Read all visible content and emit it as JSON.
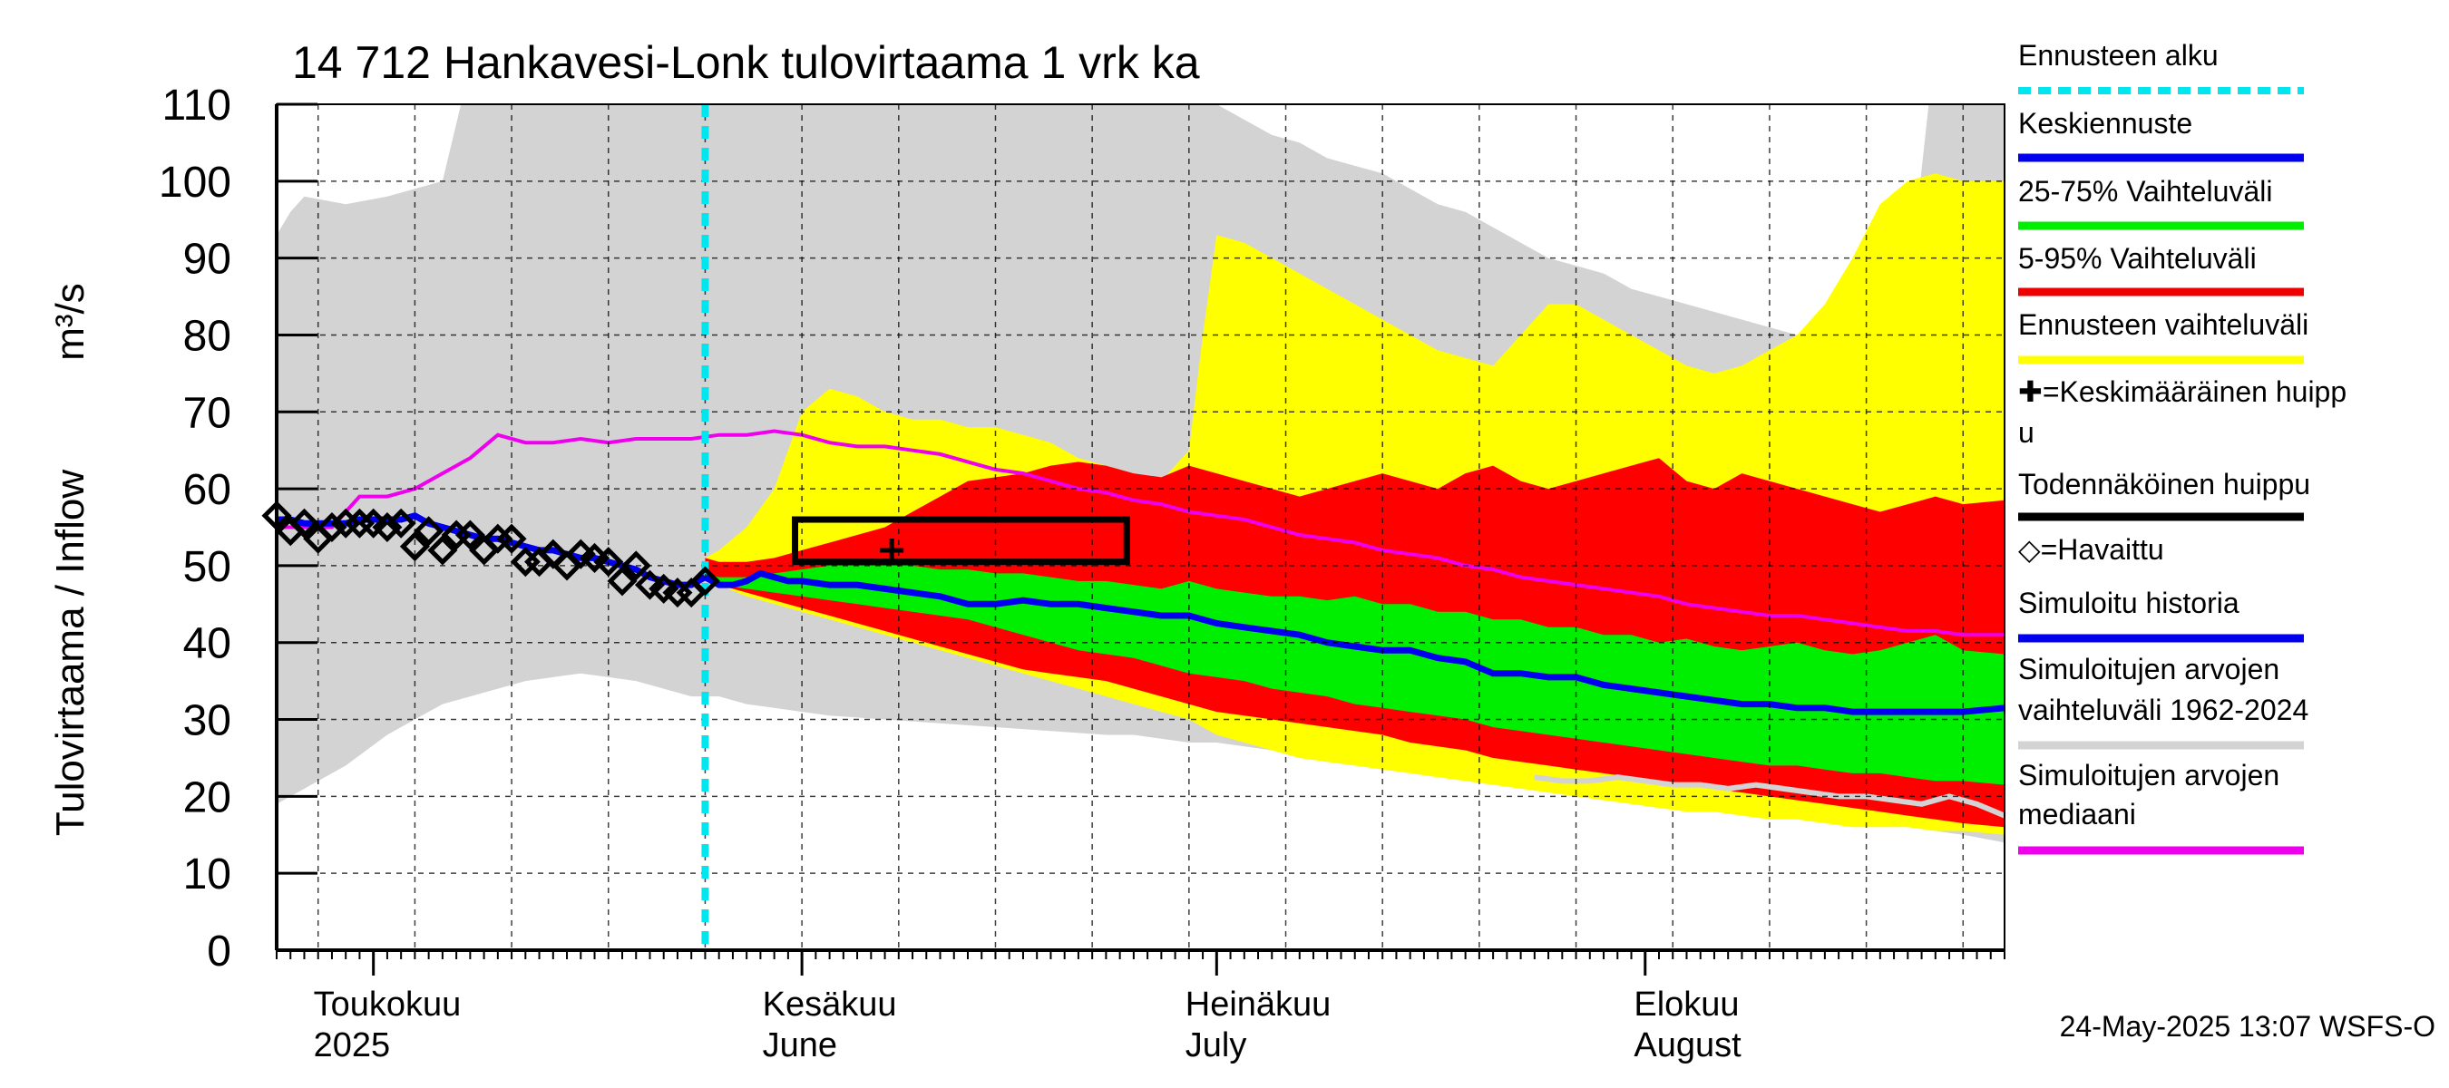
{
  "chart_data": {
    "type": "area",
    "title": "14 712 Hankavesi-Lonk tulovirtaama 1 vrk ka",
    "ylabel_main": "Tulovirtaama / Inflow",
    "ylabel_unit": "m³/s",
    "ylim": [
      0,
      110
    ],
    "yticks": [
      0,
      10,
      20,
      30,
      40,
      50,
      60,
      70,
      80,
      90,
      100,
      110
    ],
    "xlim": [
      0,
      125
    ],
    "grid": true,
    "legend_position": "right",
    "forecast_start_day": 31,
    "month_labels": [
      {
        "day": 8,
        "line1": "Toukokuu",
        "line2": "2025"
      },
      {
        "day": 40,
        "line1": "Kesäkuu",
        "line2": "June"
      },
      {
        "day": 71,
        "line1": "Heinäkuu",
        "line2": "July"
      },
      {
        "day": 102,
        "line1": "Elokuu",
        "line2": "August"
      }
    ],
    "month_starts": [
      7,
      38,
      68,
      99
    ],
    "week_lines": [
      3,
      10,
      17,
      24,
      31,
      38,
      45,
      52,
      59,
      66,
      73,
      80,
      87,
      94,
      101,
      108,
      115,
      122
    ],
    "timestamp": "24-May-2025 13:07 WSFS-O",
    "legend": [
      {
        "label": "Ennusteen alku",
        "color": "#00e5ee",
        "style": "dashed"
      },
      {
        "label": "Keskiennuste",
        "color": "#0000ee",
        "style": "line"
      },
      {
        "label": "25-75% Vaihteluväli",
        "color": "#00ee00",
        "style": "line"
      },
      {
        "label": "5-95% Vaihteluväli",
        "color": "#ee0000",
        "style": "line"
      },
      {
        "label": "Ennusteen vaihteluväli",
        "color": "#ffff00",
        "style": "line"
      },
      {
        "label": "✚=Keskimääräinen huipp",
        "label2": "u",
        "color": "#000000",
        "style": "none"
      },
      {
        "label": "Todennäköinen huippu",
        "color": "#000000",
        "style": "line"
      },
      {
        "label": "◇=Havaittu",
        "color": "#000000",
        "style": "none"
      },
      {
        "label": "Simuloitu historia",
        "color": "#0000ee",
        "style": "line"
      },
      {
        "label": "Simuloitujen arvojen",
        "label2": "vaihteluväli 1962-2024",
        "color": "#d3d3d3",
        "style": "line"
      },
      {
        "label": "Simuloitujen arvojen",
        "label2": "mediaani",
        "color": "#ee00ee",
        "style": "line"
      }
    ],
    "series": {
      "hist_range": {
        "x": [
          0,
          1,
          2,
          5,
          8,
          10,
          12,
          14,
          16,
          18,
          20,
          22,
          24,
          26,
          28,
          30,
          32,
          34,
          36,
          38,
          40,
          44,
          48,
          52,
          56,
          60,
          62,
          64,
          66,
          68,
          70,
          72,
          74,
          76,
          78,
          80,
          82,
          84,
          86,
          88,
          90,
          92,
          94,
          96,
          98,
          100,
          102,
          104,
          106,
          108,
          110,
          112,
          114,
          115,
          116,
          118,
          120,
          122,
          125
        ],
        "low": [
          19,
          20,
          21,
          24,
          28,
          30,
          32,
          33,
          34,
          35,
          35.5,
          36,
          35.5,
          35,
          34,
          33,
          33,
          32,
          31.5,
          31,
          30.5,
          30,
          29.5,
          29,
          28.5,
          28,
          28,
          27.5,
          27,
          27,
          26.5,
          26,
          25,
          24.5,
          24,
          24,
          23.5,
          23,
          23,
          22.5,
          22,
          22,
          21.5,
          21,
          21,
          20.5,
          20,
          19.5,
          19,
          19,
          18.5,
          18,
          17.5,
          17,
          16.5,
          16,
          15.5,
          15,
          14
        ],
        "high": [
          93,
          96,
          98,
          97,
          98,
          99,
          100,
          115,
          118,
          118,
          118,
          118,
          118,
          118,
          118,
          118,
          118,
          118,
          118,
          118,
          118,
          118,
          118,
          118,
          118,
          118,
          118,
          118,
          112,
          110,
          108,
          106,
          105,
          103,
          102,
          101,
          99,
          97,
          96,
          94,
          92,
          90,
          89,
          88,
          86,
          85,
          84,
          83,
          82,
          81,
          80,
          78,
          76,
          72,
          75,
          85,
          118,
          118,
          118
        ]
      },
      "ens_range": {
        "x": [
          31,
          32,
          34,
          36,
          38,
          40,
          42,
          44,
          46,
          48,
          50,
          52,
          54,
          56,
          58,
          60,
          62,
          64,
          66,
          67,
          68,
          70,
          72,
          74,
          76,
          78,
          80,
          82,
          84,
          86,
          88,
          90,
          92,
          94,
          96,
          98,
          100,
          102,
          104,
          106,
          108,
          110,
          112,
          114,
          116,
          118,
          120,
          122,
          125
        ],
        "low": [
          48,
          47.5,
          46,
          45,
          44,
          43,
          42,
          41,
          40,
          39,
          38,
          37,
          36,
          35,
          34,
          33,
          32,
          31,
          30,
          29,
          28,
          27,
          26,
          25,
          24.5,
          24,
          23.5,
          23,
          22.5,
          22,
          21.5,
          21,
          20.5,
          20,
          19.5,
          19,
          18.5,
          18,
          18,
          17.5,
          17,
          17,
          16.5,
          16,
          16,
          16,
          15.5,
          15.5,
          15
        ],
        "high": [
          51,
          52,
          55,
          60,
          70,
          73,
          72,
          70,
          69,
          69,
          68,
          68,
          67,
          66,
          64,
          63,
          62,
          61,
          65,
          80,
          93,
          92,
          90,
          88,
          86,
          84,
          82,
          80,
          78,
          77,
          76,
          80,
          84,
          84,
          82,
          80,
          78,
          76,
          75,
          76,
          78,
          80,
          84,
          90,
          97,
          100,
          101,
          100,
          100
        ]
      },
      "p5_95": {
        "x": [
          31,
          32,
          34,
          36,
          38,
          40,
          42,
          44,
          46,
          48,
          50,
          52,
          54,
          56,
          58,
          60,
          62,
          64,
          66,
          68,
          70,
          72,
          74,
          76,
          78,
          80,
          82,
          84,
          86,
          88,
          90,
          92,
          94,
          96,
          98,
          100,
          102,
          104,
          106,
          108,
          110,
          112,
          114,
          116,
          118,
          120,
          122,
          125
        ],
        "low": [
          48,
          47.5,
          46.5,
          45.5,
          44.5,
          43.5,
          42.5,
          41.5,
          40.5,
          39.5,
          38.5,
          37.5,
          36.5,
          36,
          35.5,
          35,
          34,
          33,
          32,
          31,
          30.5,
          30,
          29.5,
          29,
          28.5,
          28,
          27,
          26.5,
          26,
          25,
          24.5,
          24,
          23.5,
          23,
          22.5,
          22,
          21.5,
          21,
          20.5,
          20,
          19.5,
          19,
          18.5,
          18,
          17.5,
          17,
          16.5,
          16
        ],
        "high": [
          51,
          50.5,
          50.5,
          51,
          52,
          53,
          54,
          55,
          57,
          59,
          61,
          61.5,
          62,
          63,
          63.5,
          63,
          62,
          61.5,
          63,
          62,
          61,
          60,
          59,
          60,
          61,
          62,
          61,
          60,
          62,
          63,
          61,
          60,
          61,
          62,
          63,
          64,
          61,
          60,
          62,
          61,
          60,
          59,
          58,
          57,
          58,
          59,
          58,
          58.5
        ]
      },
      "p25_75": {
        "x": [
          31,
          32,
          34,
          36,
          38,
          40,
          42,
          44,
          46,
          48,
          50,
          52,
          54,
          56,
          58,
          60,
          62,
          64,
          66,
          68,
          70,
          72,
          74,
          76,
          78,
          80,
          82,
          84,
          86,
          88,
          90,
          92,
          94,
          96,
          98,
          100,
          102,
          104,
          106,
          108,
          110,
          112,
          114,
          116,
          118,
          120,
          122,
          125
        ],
        "low": [
          48,
          47.5,
          47,
          46.5,
          46,
          45.5,
          45,
          44.5,
          44,
          43.5,
          43,
          42,
          41,
          40,
          39,
          38.5,
          38,
          37,
          36,
          35.5,
          35,
          34,
          33.5,
          33,
          32,
          31.5,
          31,
          30.5,
          30,
          29,
          28.5,
          28,
          27.5,
          27,
          26.5,
          26,
          25.5,
          25,
          24.5,
          24,
          24,
          23.5,
          23,
          23,
          22.5,
          22,
          22,
          21.5
        ],
        "high": [
          49,
          48.5,
          48.5,
          49,
          49.5,
          50,
          50,
          50,
          50,
          49.5,
          49.5,
          49,
          49,
          48.5,
          48,
          48,
          47.5,
          47,
          48,
          47,
          46.5,
          46,
          46,
          45.5,
          46,
          45,
          45,
          44,
          44,
          43,
          43,
          42,
          42,
          41,
          41,
          40,
          40.5,
          39.5,
          39,
          39.5,
          40,
          39,
          38.5,
          39,
          40,
          41,
          39,
          38.5
        ]
      },
      "median_sim": {
        "x": [
          0,
          2,
          4,
          6,
          8,
          10,
          12,
          14,
          16,
          18,
          20,
          22,
          24,
          26,
          28,
          30,
          32,
          34,
          36,
          38,
          40,
          42,
          44,
          46,
          48,
          50,
          52,
          54,
          56,
          58,
          60,
          62,
          64,
          66,
          68,
          70,
          72,
          74,
          76,
          78,
          80,
          82,
          84,
          86,
          88,
          90,
          92,
          94,
          96,
          98,
          100,
          102,
          104,
          106,
          108,
          110,
          112,
          114,
          116,
          118,
          120,
          122,
          125
        ],
        "y": [
          55,
          55,
          55,
          59,
          59,
          60,
          62,
          64,
          67,
          66,
          66,
          66.5,
          66,
          66.5,
          66.5,
          66.5,
          67,
          67,
          67.5,
          67,
          66,
          65.5,
          65.5,
          65,
          64.5,
          63.5,
          62.5,
          62,
          61,
          60,
          59.5,
          58.5,
          58,
          57,
          56.5,
          56,
          55,
          54,
          53.5,
          53,
          52,
          51.5,
          51,
          50,
          49.5,
          48.5,
          48,
          47.5,
          47,
          46.5,
          46,
          45,
          44.5,
          44,
          43.5,
          43.5,
          43,
          42.5,
          42,
          41.5,
          41.5,
          41,
          41
        ]
      },
      "grey_median": {
        "x": [
          91,
          93,
          95,
          97,
          99,
          101,
          103,
          105,
          107,
          109,
          111,
          113,
          115,
          117,
          119,
          121,
          123,
          125
        ],
        "y": [
          22.5,
          22,
          22,
          22.5,
          22,
          21.5,
          21.5,
          21,
          21.5,
          21,
          20.5,
          20,
          20,
          19.5,
          19,
          20,
          19,
          17.5
        ]
      },
      "sim_history": {
        "x": [
          0,
          1,
          2,
          3,
          4,
          5,
          6,
          7,
          8,
          9,
          10,
          11,
          12,
          13,
          14,
          15,
          16,
          17,
          18,
          19,
          20,
          21,
          22,
          23,
          24,
          25,
          26,
          27,
          28,
          29,
          30,
          31
        ],
        "y": [
          56,
          56,
          55.5,
          55.5,
          55.5,
          55.5,
          56,
          56,
          56,
          56,
          56.5,
          55.5,
          55,
          54.5,
          54,
          53.5,
          53.5,
          53,
          52.5,
          52,
          52,
          51.5,
          51,
          51,
          50.5,
          50,
          49.5,
          48.5,
          48,
          47.5,
          47.5,
          48.5
        ]
      },
      "mean_forecast": {
        "x": [
          31,
          32,
          33,
          34,
          35,
          36,
          37,
          38,
          40,
          42,
          44,
          46,
          48,
          50,
          52,
          54,
          56,
          58,
          60,
          62,
          64,
          66,
          68,
          70,
          72,
          74,
          76,
          78,
          80,
          82,
          84,
          86,
          88,
          90,
          92,
          94,
          96,
          98,
          100,
          102,
          104,
          106,
          108,
          110,
          112,
          114,
          116,
          118,
          120,
          122,
          125
        ],
        "y": [
          48.5,
          47.5,
          47.5,
          48,
          49,
          48.5,
          48,
          48,
          47.5,
          47.5,
          47,
          46.5,
          46,
          45,
          45,
          45.5,
          45,
          45,
          44.5,
          44,
          43.5,
          43.5,
          42.5,
          42,
          41.5,
          41,
          40,
          39.5,
          39,
          39,
          38,
          37.5,
          36,
          36,
          35.5,
          35.5,
          34.5,
          34,
          33.5,
          33,
          32.5,
          32,
          32,
          31.5,
          31.5,
          31,
          31,
          31,
          31,
          31,
          31.5
        ]
      }
    },
    "observed": {
      "x": [
        0,
        1,
        2,
        3,
        4,
        5,
        6,
        7,
        8,
        9,
        10,
        11,
        12,
        13,
        14,
        15,
        16,
        17,
        18,
        19,
        20,
        21,
        22,
        23,
        24,
        25,
        26,
        27,
        28,
        29,
        30,
        31
      ],
      "y": [
        56.5,
        54.5,
        55.5,
        53.5,
        55,
        55.5,
        55.5,
        55.5,
        55,
        55.5,
        52.5,
        54.5,
        52,
        54,
        54,
        52,
        53.5,
        53.5,
        50.5,
        50.5,
        51.5,
        50,
        51.5,
        51,
        50.5,
        48,
        50,
        47.5,
        47,
        46.5,
        46.5,
        48
      ]
    },
    "probable_peak": {
      "x_start": 37.5,
      "x_end": 61.5,
      "y_low": 50.5,
      "y_high": 56
    },
    "mean_peak": {
      "x": 44.5,
      "y": 52
    }
  }
}
